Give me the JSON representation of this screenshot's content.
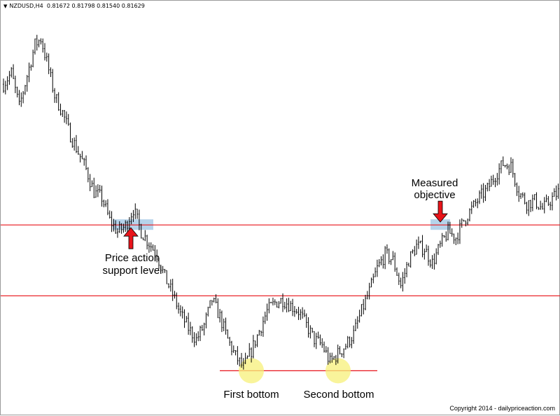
{
  "header": {
    "dropdown_icon": "triangle-down-icon",
    "symbol": "NZDUSD,H4",
    "ohlc": "0.81672 0.81798 0.81540 0.81629"
  },
  "colors": {
    "candle": "#000000",
    "level_line": "#e8141a",
    "highlight_band": "#a9cbe8",
    "arrow": "#e8141a",
    "bottom_circle": "#f7f07a"
  },
  "annotations": {
    "support_label": [
      "Price action",
      "support level"
    ],
    "objective_label": [
      "Measured",
      "objective"
    ],
    "first_bottom": "First bottom",
    "second_bottom": "Second bottom"
  },
  "copyright": "Copyright 2014 - dailypriceaction.com",
  "chart_data": {
    "type": "candlestick",
    "symbol": "NZDUSD",
    "timeframe": "H4",
    "ylim": [
      0.792,
      0.862
    ],
    "grid": false,
    "levels": [
      {
        "role": "support",
        "price": 0.8242
      },
      {
        "role": "neckline",
        "price": 0.8117
      },
      {
        "role": "bottom",
        "price": 0.7985
      }
    ],
    "close_path": [
      [
        0,
        0.849
      ],
      [
        4,
        0.851
      ],
      [
        8,
        0.845
      ],
      [
        12,
        0.8505
      ],
      [
        16,
        0.856
      ],
      [
        19,
        0.857
      ],
      [
        22,
        0.853
      ],
      [
        26,
        0.847
      ],
      [
        30,
        0.844
      ],
      [
        34,
        0.84
      ],
      [
        38,
        0.837
      ],
      [
        42,
        0.834
      ],
      [
        46,
        0.83
      ],
      [
        50,
        0.829
      ],
      [
        54,
        0.825
      ],
      [
        58,
        0.823
      ],
      [
        62,
        0.824
      ],
      [
        66,
        0.827
      ],
      [
        70,
        0.823
      ],
      [
        74,
        0.821
      ],
      [
        78,
        0.819
      ],
      [
        82,
        0.815
      ],
      [
        86,
        0.812
      ],
      [
        90,
        0.8085
      ],
      [
        94,
        0.806
      ],
      [
        98,
        0.804
      ],
      [
        102,
        0.8065
      ],
      [
        106,
        0.811
      ],
      [
        110,
        0.808
      ],
      [
        114,
        0.804
      ],
      [
        118,
        0.801
      ],
      [
        122,
        0.799
      ],
      [
        126,
        0.802
      ],
      [
        130,
        0.8055
      ],
      [
        134,
        0.809
      ],
      [
        138,
        0.8105
      ],
      [
        142,
        0.811
      ],
      [
        146,
        0.81
      ],
      [
        150,
        0.809
      ],
      [
        154,
        0.8065
      ],
      [
        158,
        0.804
      ],
      [
        162,
        0.803
      ],
      [
        166,
        0.8
      ],
      [
        170,
        0.8015
      ],
      [
        174,
        0.803
      ],
      [
        178,
        0.805
      ],
      [
        182,
        0.809
      ],
      [
        186,
        0.8125
      ],
      [
        190,
        0.8165
      ],
      [
        194,
        0.819
      ],
      [
        198,
        0.818
      ],
      [
        202,
        0.8135
      ],
      [
        206,
        0.818
      ],
      [
        210,
        0.8205
      ],
      [
        214,
        0.82
      ],
      [
        218,
        0.8175
      ],
      [
        222,
        0.8205
      ],
      [
        226,
        0.823
      ],
      [
        230,
        0.822
      ],
      [
        234,
        0.825
      ],
      [
        238,
        0.827
      ],
      [
        242,
        0.829
      ],
      [
        246,
        0.8305
      ],
      [
        250,
        0.833
      ],
      [
        254,
        0.835
      ],
      [
        258,
        0.8345
      ],
      [
        262,
        0.83
      ],
      [
        266,
        0.828
      ],
      [
        270,
        0.8285
      ],
      [
        274,
        0.827
      ],
      [
        278,
        0.8285
      ],
      [
        282,
        0.83
      ]
    ]
  }
}
